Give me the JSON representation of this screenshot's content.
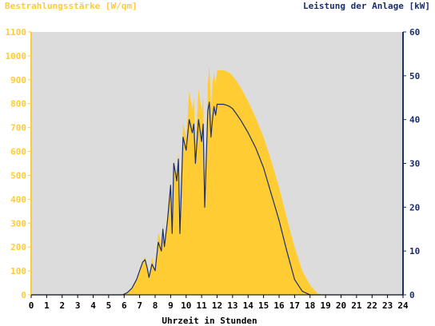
{
  "chart_data": {
    "type": "area",
    "left_axis_title": "Bestrahlungsstärke [W/qm]",
    "right_axis_title": "Leistung der Anlage [kW]",
    "xlabel": "Uhrzeit in Stunden",
    "x_ticks": [
      "0",
      "1",
      "2",
      "3",
      "4",
      "5",
      "6",
      "7",
      "8",
      "9",
      "10",
      "11",
      "12",
      "13",
      "14",
      "15",
      "16",
      "17",
      "18",
      "19",
      "20",
      "21",
      "22",
      "23",
      "24"
    ],
    "y_left_ticks": [
      "0",
      "100",
      "200",
      "300",
      "400",
      "500",
      "600",
      "700",
      "800",
      "900",
      "1000",
      "1100"
    ],
    "y_right_ticks": [
      "0",
      "10",
      "20",
      "30",
      "40",
      "50",
      "60"
    ],
    "xlim": [
      0,
      24
    ],
    "ylim_left": [
      0,
      1100
    ],
    "ylim_right": [
      0,
      60
    ],
    "grid": false,
    "colors": {
      "irradiance": "#ffcc33",
      "power": "#1a2e6e",
      "plot_bg": "#dcdcdc",
      "left_axis": "#ffcc33",
      "right_axis": "#1a2e6e"
    },
    "series": [
      {
        "name": "Bestrahlungsstärke [W/qm]",
        "axis": "left",
        "style": "area",
        "x": [
          0,
          5.9,
          6.2,
          6.5,
          6.8,
          7.0,
          7.2,
          7.35,
          7.5,
          7.6,
          7.8,
          8.0,
          8.2,
          8.4,
          8.5,
          8.6,
          8.8,
          9.0,
          9.1,
          9.2,
          9.4,
          9.5,
          9.6,
          9.8,
          10.0,
          10.2,
          10.4,
          10.5,
          10.6,
          10.8,
          11.0,
          11.1,
          11.2,
          11.4,
          11.5,
          11.6,
          11.7,
          11.8,
          11.9,
          12.0,
          12.2,
          12.4,
          12.6,
          12.8,
          13.0,
          13.2,
          13.5,
          14.0,
          14.5,
          15.0,
          15.5,
          16.0,
          16.5,
          17.0,
          17.5,
          18.0,
          18.5,
          19.0,
          19.2,
          24
        ],
        "y": [
          0,
          0,
          10,
          25,
          60,
          100,
          140,
          160,
          120,
          70,
          160,
          100,
          260,
          220,
          300,
          210,
          340,
          480,
          260,
          560,
          500,
          600,
          270,
          720,
          660,
          850,
          780,
          820,
          620,
          860,
          770,
          830,
          400,
          880,
          960,
          780,
          880,
          930,
          880,
          940,
          940,
          940,
          935,
          930,
          915,
          900,
          870,
          810,
          740,
          660,
          560,
          450,
          320,
          200,
          100,
          40,
          5,
          0,
          0,
          0
        ]
      },
      {
        "name": "Leistung der Anlage [kW]",
        "axis": "right",
        "style": "line",
        "x": [
          0,
          5.9,
          6.2,
          6.5,
          6.8,
          7.0,
          7.2,
          7.35,
          7.5,
          7.6,
          7.8,
          8.0,
          8.2,
          8.4,
          8.5,
          8.6,
          8.8,
          9.0,
          9.1,
          9.2,
          9.4,
          9.5,
          9.6,
          9.8,
          10.0,
          10.2,
          10.4,
          10.5,
          10.6,
          10.8,
          11.0,
          11.1,
          11.2,
          11.4,
          11.5,
          11.6,
          11.7,
          11.8,
          11.9,
          12.0,
          12.2,
          12.4,
          12.6,
          12.8,
          13.0,
          13.2,
          13.5,
          14.0,
          14.5,
          15.0,
          15.5,
          16.0,
          16.5,
          17.0,
          17.5,
          18.0,
          18.5,
          19.0,
          19.2,
          24
        ],
        "y": [
          0,
          0,
          0.5,
          1.5,
          3.5,
          5.5,
          7.5,
          8,
          6,
          4,
          7,
          5.5,
          12,
          10,
          15,
          11,
          17,
          25,
          14,
          30,
          26,
          31,
          14,
          36,
          33,
          40,
          37,
          39,
          30,
          40,
          35,
          39,
          20,
          42,
          44,
          36,
          40,
          43,
          41,
          43.5,
          43.5,
          43.5,
          43.3,
          43,
          42.5,
          41.5,
          40,
          37,
          33.5,
          29,
          23,
          17,
          10,
          3.5,
          0.8,
          0,
          0,
          0,
          0,
          0
        ]
      }
    ]
  }
}
